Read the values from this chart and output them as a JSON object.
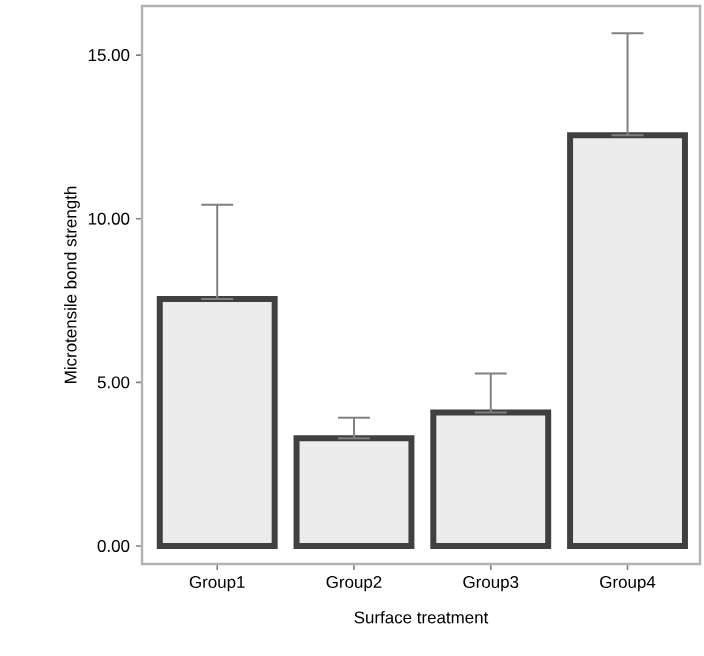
{
  "chart_data": {
    "type": "bar",
    "xlabel": "Surface treatment",
    "ylabel": "Microtensile bond strength",
    "categories": [
      "Group1",
      "Group2",
      "Group3",
      "Group4"
    ],
    "values": [
      7.55,
      3.29,
      4.08,
      12.55
    ],
    "errors": [
      [
        7.55,
        10.43
      ],
      [
        3.29,
        3.92
      ],
      [
        4.08,
        5.27
      ],
      [
        12.55,
        15.67
      ]
    ],
    "color": "#ececec",
    "ylim": [
      -0.55,
      16.5
    ],
    "yticks": [
      {
        "value": 0,
        "label": "0.00"
      },
      {
        "value": 5,
        "label": "5.00"
      },
      {
        "value": 10,
        "label": "10.00"
      },
      {
        "value": 15,
        "label": "15.00"
      }
    ],
    "grid": false
  }
}
